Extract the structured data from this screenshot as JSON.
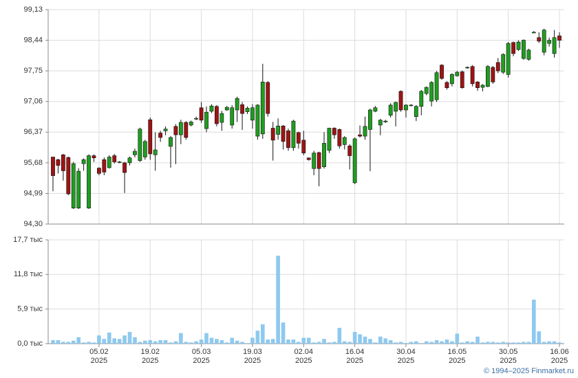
{
  "chart_data": [
    {
      "type": "candlestick",
      "ylim": [
        94.3,
        99.13
      ],
      "yticks": [
        {
          "value": 94.3,
          "label": "94,30"
        },
        {
          "value": 94.99,
          "label": "94,99"
        },
        {
          "value": 95.68,
          "label": "95,68"
        },
        {
          "value": 96.37,
          "label": "96,37"
        },
        {
          "value": 97.06,
          "label": "97,06"
        },
        {
          "value": 97.75,
          "label": "97,75"
        },
        {
          "value": 98.44,
          "label": "98,44"
        },
        {
          "value": 99.13,
          "label": "99,13"
        }
      ],
      "grid": true,
      "up_color": "#1f9e1f",
      "down_color": "#9e1414",
      "open": [
        95.81,
        95.75,
        95.86,
        95.8,
        94.66,
        94.66,
        95.66,
        94.66,
        95.84,
        95.56,
        95.75,
        95.57,
        95.84,
        95.7,
        95.68,
        95.68,
        95.86,
        95.73,
        95.81,
        96.65,
        95.86,
        96.35,
        96.4,
        96.05,
        96.5,
        96.31,
        96.59,
        96.53,
        96.68,
        96.92,
        96.45,
        96.84,
        96.95,
        96.59,
        96.87,
        96.53,
        96.87,
        96.99,
        96.83,
        96.64,
        96.28,
        96.33,
        97.49,
        96.46,
        96.32,
        96.51,
        96.4,
        96.02,
        96.36,
        96.19,
        95.79,
        95.55,
        95.91,
        95.59,
        95.96,
        96.46,
        96.43,
        96.09,
        96.06,
        95.23,
        96.31,
        96.28,
        96.43,
        96.84,
        96.53,
        96.6,
        96.75,
        96.84,
        97.29,
        96.87,
        96.98,
        96.72,
        96.95,
        97.24,
        97.07,
        97.1,
        97.88,
        97.49,
        97.46,
        97.64,
        97.73,
        97.83,
        97.85,
        97.5,
        97.38,
        97.4,
        97.83,
        97.94,
        97.72,
        97.67,
        98.39,
        98.23,
        98.03,
        98.01,
        98.62,
        98.5,
        98.17,
        98.37,
        98.14,
        98.54
      ],
      "high": [
        95.81,
        95.77,
        95.88,
        95.82,
        95.7,
        95.56,
        95.78,
        95.87,
        95.87,
        95.58,
        95.8,
        95.85,
        95.88,
        95.72,
        95.7,
        95.82,
        96.0,
        96.47,
        96.2,
        96.7,
        96.37,
        96.4,
        96.5,
        96.28,
        96.55,
        96.65,
        96.62,
        96.63,
        96.72,
        97.05,
        96.95,
        97.0,
        96.98,
        96.85,
        96.96,
        96.98,
        97.17,
        97.05,
        96.95,
        97.0,
        97.0,
        97.91,
        97.52,
        96.6,
        96.68,
        96.53,
        96.45,
        96.65,
        96.38,
        96.4,
        95.8,
        95.95,
        95.93,
        96.37,
        96.47,
        96.48,
        96.45,
        96.28,
        96.1,
        96.25,
        96.52,
        96.72,
        96.9,
        96.96,
        96.67,
        96.65,
        97.02,
        97.06,
        97.31,
        97.0,
        97.0,
        96.98,
        97.32,
        97.4,
        97.52,
        97.75,
        97.9,
        97.52,
        97.7,
        97.75,
        97.76,
        97.85,
        97.88,
        97.52,
        97.45,
        97.88,
        97.86,
        98.04,
        98.15,
        98.4,
        98.41,
        98.44,
        98.46,
        98.25,
        98.65,
        98.62,
        98.7,
        98.5,
        98.67,
        98.62
      ],
      "low": [
        95.04,
        95.44,
        95.28,
        94.95,
        94.64,
        94.64,
        95.5,
        94.64,
        95.7,
        95.4,
        95.4,
        95.55,
        95.66,
        95.67,
        95.0,
        95.62,
        95.8,
        95.7,
        95.75,
        95.75,
        95.5,
        96.15,
        96.3,
        95.57,
        95.65,
        96.1,
        96.2,
        96.5,
        96.64,
        96.58,
        96.37,
        96.8,
        96.5,
        96.4,
        96.85,
        96.45,
        96.6,
        96.42,
        96.78,
        96.45,
        96.2,
        96.22,
        96.72,
        95.73,
        96.2,
        95.98,
        95.95,
        95.95,
        96.0,
        95.85,
        95.73,
        95.4,
        95.15,
        95.55,
        95.9,
        96.22,
        96.0,
        95.98,
        95.53,
        95.2,
        96.25,
        96.2,
        95.49,
        96.82,
        96.3,
        96.58,
        96.7,
        96.5,
        96.83,
        96.7,
        96.95,
        96.62,
        96.75,
        97.2,
        96.95,
        97.05,
        97.55,
        97.33,
        97.4,
        97.62,
        97.35,
        97.8,
        97.4,
        97.3,
        97.29,
        97.38,
        97.46,
        97.7,
        97.68,
        97.6,
        98.08,
        98.2,
        98.0,
        97.98,
        98.6,
        98.38,
        98.1,
        98.3,
        98.05,
        98.27
      ],
      "close": [
        95.39,
        95.62,
        95.5,
        94.98,
        95.66,
        95.49,
        95.75,
        95.84,
        95.79,
        95.44,
        95.47,
        95.81,
        95.7,
        95.7,
        95.46,
        95.79,
        95.94,
        96.44,
        96.16,
        95.88,
        95.97,
        96.25,
        96.44,
        96.25,
        96.31,
        96.59,
        96.25,
        96.6,
        96.68,
        96.64,
        96.82,
        96.96,
        96.56,
        96.79,
        96.93,
        96.92,
        97.13,
        96.79,
        96.91,
        96.92,
        96.98,
        97.5,
        96.79,
        96.19,
        96.51,
        96.16,
        96.02,
        96.62,
        96.12,
        95.9,
        95.75,
        95.9,
        95.55,
        96.12,
        96.46,
        96.31,
        96.06,
        96.25,
        95.84,
        96.22,
        96.28,
        96.5,
        96.87,
        96.92,
        96.64,
        96.62,
        96.98,
        97.04,
        96.87,
        96.98,
        96.98,
        96.95,
        97.29,
        97.38,
        97.49,
        97.71,
        97.58,
        97.37,
        97.67,
        97.72,
        97.37,
        97.83,
        97.46,
        97.37,
        97.43,
        97.85,
        97.5,
        97.75,
        98.12,
        98.37,
        98.14,
        98.4,
        98.44,
        98.22,
        98.62,
        98.42,
        98.67,
        98.44,
        98.5,
        98.44
      ]
    },
    {
      "type": "bar",
      "ylim": [
        0,
        17.7
      ],
      "yticks": [
        {
          "value": 0,
          "label": "0,0 тыс"
        },
        {
          "value": 5.9,
          "label": "5,9 тыс"
        },
        {
          "value": 11.8,
          "label": "11,8 тыс"
        },
        {
          "value": 17.7,
          "label": "17,7 тыс"
        }
      ],
      "grid": true,
      "color": "#8ec9ef",
      "categories": [
        null,
        null,
        null,
        null,
        null,
        null,
        null,
        null,
        null,
        "05.02\n2025",
        null,
        null,
        null,
        null,
        null,
        null,
        null,
        null,
        null,
        "19.02\n2025",
        null,
        null,
        null,
        null,
        null,
        null,
        null,
        null,
        null,
        "05.03\n2025",
        null,
        null,
        null,
        null,
        null,
        null,
        null,
        null,
        null,
        "19.03\n2025",
        null,
        null,
        null,
        null,
        null,
        null,
        null,
        null,
        null,
        "02.04\n2025",
        null,
        null,
        null,
        null,
        null,
        null,
        null,
        null,
        null,
        "16.04\n2025",
        null,
        null,
        null,
        null,
        null,
        null,
        null,
        null,
        null,
        "30.04\n2025",
        null,
        null,
        null,
        null,
        null,
        null,
        null,
        null,
        null,
        "16.05\n2025",
        null,
        null,
        null,
        null,
        null,
        null,
        null,
        null,
        null,
        "30.05\n2025",
        null,
        null,
        null,
        null,
        null,
        null,
        null,
        null,
        null,
        "16.06\n2025"
      ],
      "values": [
        0.6,
        0.6,
        0.3,
        0.3,
        0.5,
        1.1,
        0.2,
        0.3,
        0.2,
        1.4,
        0.8,
        1.9,
        0.9,
        0.8,
        1.4,
        2.0,
        1.1,
        0.3,
        0.5,
        0.6,
        0.4,
        0.6,
        0.6,
        0.2,
        0.4,
        1.8,
        0.3,
        0.2,
        0.4,
        0.7,
        1.8,
        1.0,
        0.8,
        0.6,
        0.2,
        1.0,
        0.5,
        0.3,
        0.1,
        1.0,
        2.2,
        3.3,
        0.7,
        0.8,
        15.0,
        3.6,
        0.7,
        0.7,
        0.3,
        1.0,
        1.0,
        0.2,
        0.3,
        0.8,
        0.2,
        0.3,
        2.7,
        0.4,
        0.3,
        2.0,
        1.6,
        1.2,
        0.8,
        0.2,
        1.2,
        0.9,
        0.6,
        0.2,
        0.3,
        0.1,
        0.3,
        0.4,
        0.1,
        0.4,
        0.3,
        0.6,
        0.4,
        0.7,
        0.4,
        1.7,
        0.2,
        0.4,
        0.3,
        1.2,
        0.2,
        0.3,
        0.3,
        0.2,
        0.3,
        0.2,
        0.2,
        0.2,
        0.3,
        0.3,
        7.5,
        2.1,
        0.3,
        0.4,
        0.4,
        0.2
      ]
    }
  ],
  "footer": "© 1994–2025 Finmarket.ru"
}
